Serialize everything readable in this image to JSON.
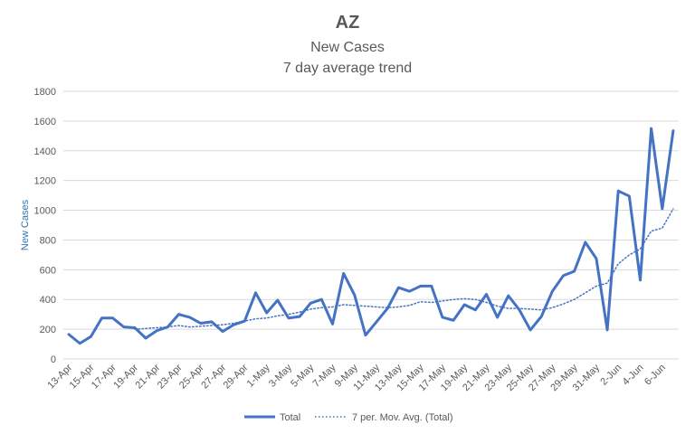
{
  "chart_data": {
    "type": "line",
    "title": "AZ",
    "subtitle_lines": [
      "New Cases",
      "7 day average trend"
    ],
    "ylabel": "New Cases",
    "xlabel": "",
    "ylim": [
      0,
      1800
    ],
    "yticks": [
      0,
      200,
      400,
      600,
      800,
      1000,
      1200,
      1400,
      1600,
      1800
    ],
    "grid": true,
    "legend_position": "bottom",
    "x": [
      "13-Apr",
      "14-Apr",
      "15-Apr",
      "16-Apr",
      "17-Apr",
      "18-Apr",
      "19-Apr",
      "20-Apr",
      "21-Apr",
      "22-Apr",
      "23-Apr",
      "24-Apr",
      "25-Apr",
      "26-Apr",
      "27-Apr",
      "28-Apr",
      "29-Apr",
      "30-Apr",
      "1-May",
      "2-May",
      "3-May",
      "4-May",
      "5-May",
      "6-May",
      "7-May",
      "8-May",
      "9-May",
      "10-May",
      "11-May",
      "12-May",
      "13-May",
      "14-May",
      "15-May",
      "16-May",
      "17-May",
      "18-May",
      "19-May",
      "20-May",
      "21-May",
      "22-May",
      "23-May",
      "24-May",
      "25-May",
      "26-May",
      "27-May",
      "28-May",
      "29-May",
      "30-May",
      "31-May",
      "1-Jun",
      "2-Jun",
      "3-Jun",
      "4-Jun",
      "5-Jun",
      "6-Jun",
      "7-Jun"
    ],
    "xtick_labels": [
      "13-Apr",
      "15-Apr",
      "17-Apr",
      "19-Apr",
      "21-Apr",
      "23-Apr",
      "25-Apr",
      "27-Apr",
      "29-Apr",
      "1-May",
      "3-May",
      "5-May",
      "7-May",
      "9-May",
      "11-May",
      "13-May",
      "15-May",
      "17-May",
      "19-May",
      "21-May",
      "23-May",
      "25-May",
      "27-May",
      "29-May",
      "31-May",
      "2-Jun",
      "4-Jun",
      "6-Jun"
    ],
    "series": [
      {
        "name": "Total",
        "color": "#4472c4",
        "style": "solid",
        "values": [
          165,
          105,
          150,
          275,
          275,
          215,
          210,
          140,
          190,
          215,
          300,
          280,
          240,
          250,
          185,
          230,
          255,
          445,
          310,
          395,
          275,
          285,
          375,
          400,
          235,
          575,
          430,
          160,
          250,
          340,
          480,
          455,
          490,
          490,
          280,
          260,
          365,
          330,
          435,
          280,
          425,
          330,
          195,
          285,
          455,
          560,
          590,
          785,
          675,
          195,
          1130,
          1095,
          530,
          1550,
          1010,
          1535
        ]
      },
      {
        "name": "7 per. Mov. Avg. (Total)",
        "color": "#4472c4",
        "style": "dotted",
        "values": [
          null,
          null,
          null,
          null,
          null,
          null,
          200,
          205,
          210,
          215,
          225,
          215,
          220,
          225,
          230,
          240,
          255,
          270,
          275,
          290,
          300,
          315,
          335,
          345,
          350,
          365,
          360,
          355,
          350,
          345,
          350,
          360,
          385,
          380,
          390,
          400,
          405,
          400,
          380,
          355,
          340,
          340,
          335,
          330,
          345,
          370,
          400,
          445,
          490,
          510,
          640,
          700,
          740,
          860,
          880,
          1010
        ]
      }
    ]
  }
}
